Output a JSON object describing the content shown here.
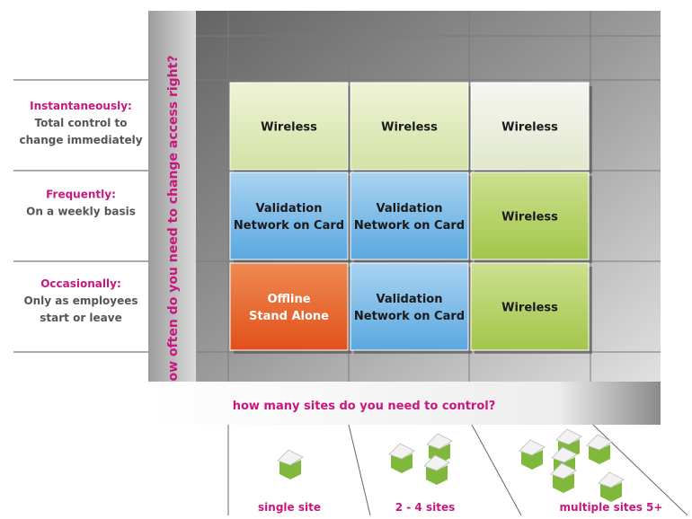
{
  "y_axis_label": "how often do you need to change access right?",
  "x_axis_label": "how many sites do you need to control?",
  "rows": [
    {
      "title": "Instantaneously:",
      "description": [
        "Total control to",
        "change immediately"
      ]
    },
    {
      "title": "Frequently:",
      "description": [
        "On a weekly basis"
      ]
    },
    {
      "title": "Occasionally:",
      "description": [
        "Only as employees",
        "start or leave"
      ]
    }
  ],
  "columns": [
    "single site",
    "2 - 4 sites",
    "multiple sites 5+"
  ],
  "cells": [
    [
      [
        "Wireless"
      ],
      [
        "Wireless"
      ],
      [
        "Wireless"
      ]
    ],
    [
      [
        "Validation",
        "Network on Card"
      ],
      [
        "Validation",
        "Network on Card"
      ],
      [
        "Wireless"
      ]
    ],
    [
      [
        "Offline",
        "Stand Alone"
      ],
      [
        "Validation",
        "Network on Card"
      ],
      [
        "Wireless"
      ]
    ]
  ]
}
